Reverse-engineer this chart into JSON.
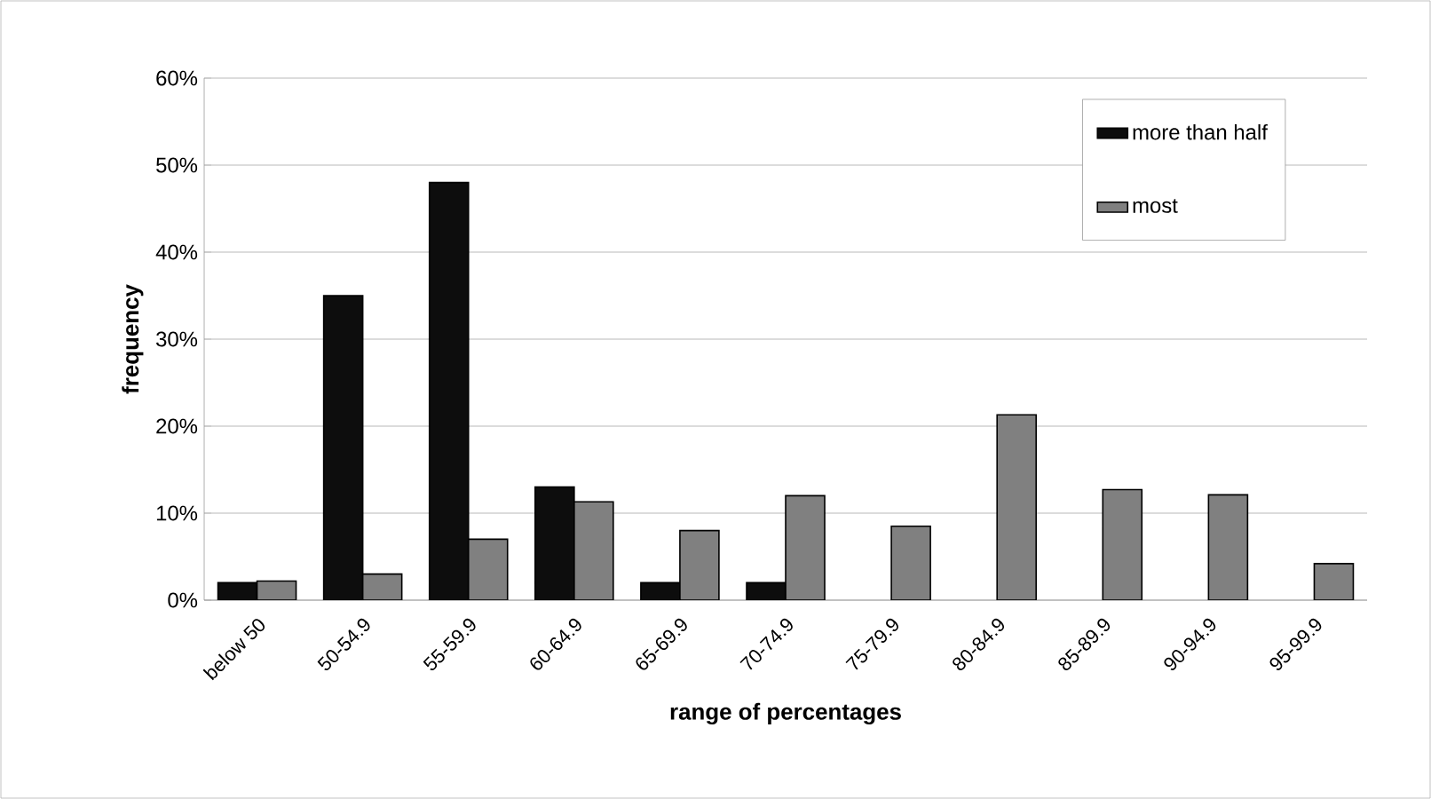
{
  "chart_data": {
    "type": "bar",
    "xlabel": "range of percentages",
    "ylabel": "frequency",
    "categories": [
      "below 50",
      "50-54.9",
      "55-59.9",
      "60-64.9",
      "65-69.9",
      "70-74.9",
      "75-79.9",
      "80-84.9",
      "85-89.9",
      "90-94.9",
      "95-99.9"
    ],
    "series": [
      {
        "name": "more than half",
        "color": "#0d0d0d",
        "values": [
          2,
          35,
          48,
          13,
          2,
          2,
          null,
          null,
          null,
          null,
          null
        ]
      },
      {
        "name": "most",
        "color": "#808080",
        "values": [
          2.2,
          3,
          7,
          11.3,
          8,
          12,
          8.5,
          21.3,
          12.7,
          12.1,
          4.2
        ]
      }
    ],
    "ylim": [
      0,
      60
    ],
    "yticks": [
      {
        "value": 0,
        "label": "0%"
      },
      {
        "value": 10,
        "label": "10%"
      },
      {
        "value": 20,
        "label": "20%"
      },
      {
        "value": 30,
        "label": "30%"
      },
      {
        "value": 40,
        "label": "40%"
      },
      {
        "value": 50,
        "label": "50%"
      },
      {
        "value": 60,
        "label": "60%"
      }
    ],
    "grid": "y",
    "legend": "top right"
  }
}
